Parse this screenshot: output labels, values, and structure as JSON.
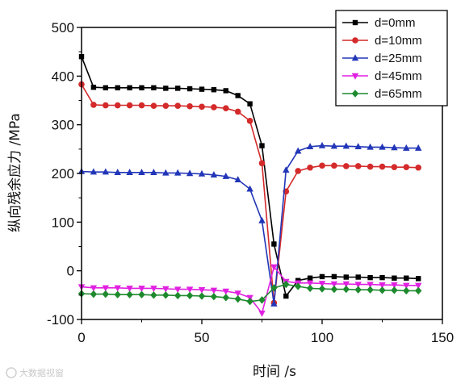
{
  "chart_data": {
    "type": "line",
    "xlabel": "时间 /s",
    "ylabel": "纵向残余应力 /MPa",
    "xlim": [
      0,
      150
    ],
    "ylim": [
      -100,
      500
    ],
    "xticks": [
      0,
      50,
      100,
      150
    ],
    "yticks": [
      -100,
      0,
      100,
      200,
      300,
      400,
      500
    ],
    "grid": false,
    "legend_position": "top-right",
    "series": [
      {
        "name": "d=0mm",
        "color": "#000000",
        "marker": "square",
        "x": [
          0,
          5,
          10,
          15,
          20,
          25,
          30,
          35,
          40,
          45,
          50,
          55,
          60,
          65,
          70,
          75,
          80,
          85,
          90,
          95,
          100,
          105,
          110,
          115,
          120,
          125,
          130,
          135,
          140
        ],
        "y": [
          440,
          377,
          376,
          376,
          376,
          376,
          376,
          375,
          375,
          374,
          373,
          372,
          370,
          360,
          343,
          257,
          55,
          -52,
          -20,
          -15,
          -12,
          -12,
          -13,
          -13,
          -14,
          -14,
          -15,
          -15,
          -16
        ]
      },
      {
        "name": "d=10mm",
        "color": "#d42a2a",
        "marker": "circle",
        "x": [
          0,
          5,
          10,
          15,
          20,
          25,
          30,
          35,
          40,
          45,
          50,
          55,
          60,
          65,
          70,
          75,
          80,
          85,
          90,
          95,
          100,
          105,
          110,
          115,
          120,
          125,
          130,
          135,
          140
        ],
        "y": [
          383,
          341,
          340,
          340,
          340,
          340,
          339,
          339,
          339,
          338,
          337,
          336,
          334,
          327,
          308,
          221,
          -66,
          163,
          205,
          212,
          216,
          216,
          215,
          215,
          214,
          214,
          213,
          213,
          212
        ]
      },
      {
        "name": "d=25mm",
        "color": "#2236b8",
        "marker": "triangle-up",
        "x": [
          0,
          5,
          10,
          15,
          20,
          25,
          30,
          35,
          40,
          45,
          50,
          55,
          60,
          65,
          70,
          75,
          80,
          85,
          90,
          95,
          100,
          105,
          110,
          115,
          120,
          125,
          130,
          135,
          140
        ],
        "y": [
          204,
          203,
          203,
          202,
          202,
          202,
          202,
          201,
          201,
          200,
          199,
          197,
          194,
          187,
          168,
          103,
          -68,
          207,
          246,
          255,
          257,
          256,
          256,
          255,
          254,
          254,
          253,
          252,
          252
        ]
      },
      {
        "name": "d=45mm",
        "color": "#e020e0",
        "marker": "triangle-down",
        "x": [
          0,
          5,
          10,
          15,
          20,
          25,
          30,
          35,
          40,
          45,
          50,
          55,
          60,
          65,
          70,
          75,
          80,
          85,
          90,
          95,
          100,
          105,
          110,
          115,
          120,
          125,
          130,
          135,
          140
        ],
        "y": [
          -33,
          -35,
          -35,
          -35,
          -36,
          -36,
          -36,
          -37,
          -38,
          -38,
          -39,
          -40,
          -42,
          -46,
          -55,
          -87,
          8,
          -22,
          -25,
          -25,
          -26,
          -27,
          -27,
          -28,
          -28,
          -29,
          -29,
          -30,
          -30
        ]
      },
      {
        "name": "d=65mm",
        "color": "#1e8a2e",
        "marker": "diamond",
        "x": [
          0,
          5,
          10,
          15,
          20,
          25,
          30,
          35,
          40,
          45,
          50,
          55,
          60,
          65,
          70,
          75,
          80,
          85,
          90,
          95,
          100,
          105,
          110,
          115,
          120,
          125,
          130,
          135,
          140
        ],
        "y": [
          -47,
          -48,
          -48,
          -49,
          -49,
          -49,
          -50,
          -50,
          -51,
          -51,
          -52,
          -53,
          -55,
          -58,
          -63,
          -60,
          -35,
          -28,
          -32,
          -36,
          -37,
          -38,
          -38,
          -39,
          -39,
          -40,
          -40,
          -41,
          -41
        ]
      }
    ]
  },
  "watermark": {
    "text": "大数据视窗"
  }
}
